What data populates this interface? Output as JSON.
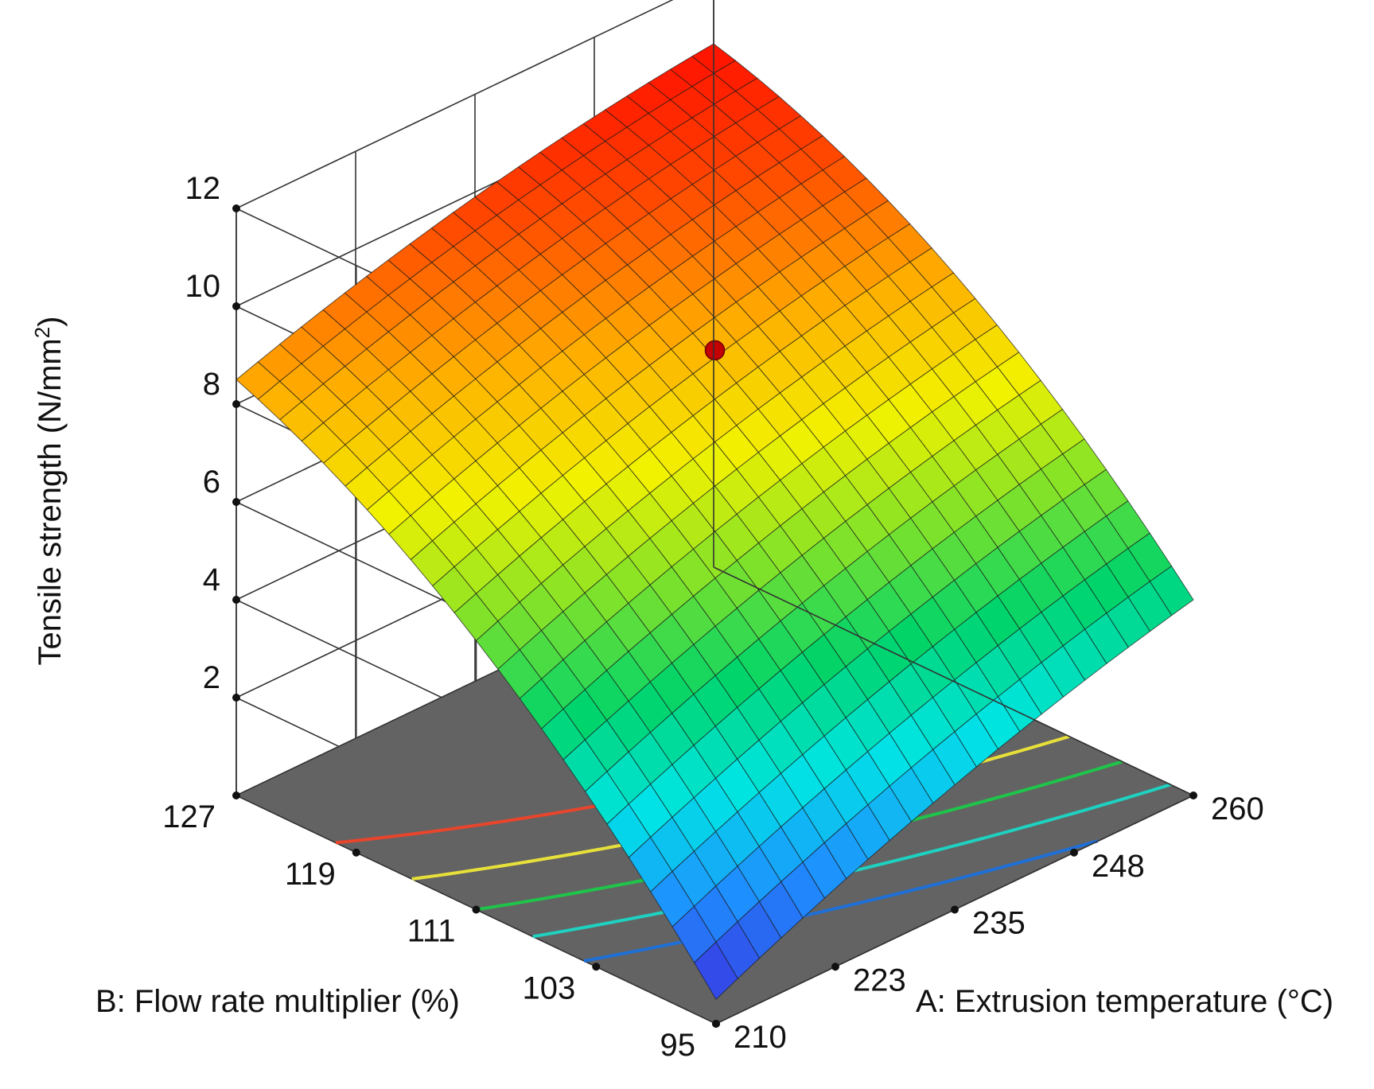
{
  "chart_data": {
    "type": "surface3d",
    "zlabel": "Tensile strength (N/mm",
    "zlabel_superscript": "2",
    "zlabel_close": ")",
    "xlabel": "A: Extrusion temperature (°C)",
    "ylabel": "B: Flow rate multiplier (%)",
    "x_ticks": [
      "210",
      "223",
      "235",
      "248",
      "260"
    ],
    "y_ticks": [
      "95",
      "103",
      "111",
      "119",
      "127"
    ],
    "z_ticks": [
      "2",
      "4",
      "6",
      "8",
      "10",
      "12"
    ],
    "x_range": [
      210,
      260
    ],
    "y_range": [
      95,
      127
    ],
    "z_range": [
      0,
      12
    ],
    "surface_corners": {
      "x210_y95": 0.5,
      "x260_y95": 4.0,
      "x210_y127": 8.5,
      "x260_y127": 10.7
    },
    "design_point": {
      "x": 235,
      "y": 111,
      "z": 9.1
    },
    "contour_levels": [
      {
        "level": 7.5,
        "color": "#e8452c"
      },
      {
        "level": 6.5,
        "color": "#e8e03a"
      },
      {
        "level": 5.5,
        "color": "#1fc44a"
      },
      {
        "level": 4.5,
        "color": "#1ed1c0"
      },
      {
        "level": 3.5,
        "color": "#1e6fd6"
      }
    ],
    "colormap": [
      "#3a2fe0",
      "#1e90ff",
      "#00e5e5",
      "#00d46a",
      "#7fe22a",
      "#f2f200",
      "#ffae00",
      "#ff4a00",
      "#ff0000"
    ],
    "floor_color": "#636363",
    "point_color": "#c40000"
  }
}
